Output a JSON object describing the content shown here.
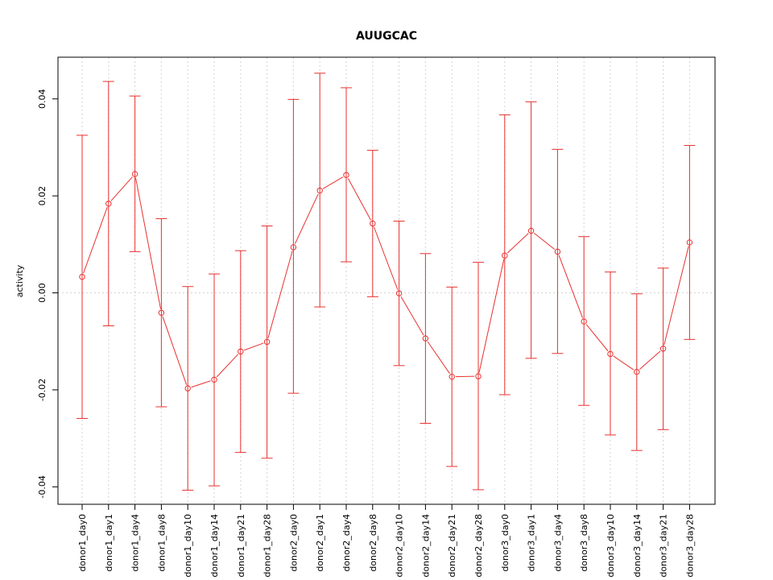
{
  "chart_data": {
    "type": "line",
    "title": "AUUGCAC",
    "xlabel": "",
    "ylabel": "activity",
    "ylim": [
      -0.0436,
      0.0486
    ],
    "grid": true,
    "colors": {
      "series": "#e8312f",
      "grid": "#d3d3d3",
      "axis": "#000000"
    },
    "yticks": [
      {
        "value": -0.04,
        "label": "-0.04"
      },
      {
        "value": -0.02,
        "label": "-0.02"
      },
      {
        "value": 0.0,
        "label": "0.00"
      },
      {
        "value": 0.02,
        "label": "0.02"
      },
      {
        "value": 0.04,
        "label": "0.04"
      }
    ],
    "categories": [
      "donor1_day0",
      "donor1_day1",
      "donor1_day4",
      "donor1_day8",
      "donor1_day10",
      "donor1_day14",
      "donor1_day21",
      "donor1_day28",
      "donor2_day0",
      "donor2_day1",
      "donor2_day4",
      "donor2_day8",
      "donor2_day10",
      "donor2_day14",
      "donor2_day21",
      "donor2_day28",
      "donor3_day0",
      "donor3_day1",
      "donor3_day4",
      "donor3_day8",
      "donor3_day10",
      "donor3_day14",
      "donor3_day21",
      "donor3_day28"
    ],
    "series": [
      {
        "values": [
          0.0033,
          0.0184,
          0.0245,
          -0.0041,
          -0.0197,
          -0.0179,
          -0.0121,
          -0.0101,
          0.0094,
          0.0211,
          0.0243,
          0.0143,
          -0.0001,
          -0.0094,
          -0.0173,
          -0.0172,
          0.0077,
          0.0128,
          0.0085,
          -0.0059,
          -0.0126,
          -0.0163,
          -0.0115,
          0.0104
        ],
        "upper": [
          0.0325,
          0.0436,
          0.0406,
          0.0153,
          0.0013,
          0.0039,
          0.0087,
          0.0138,
          0.0399,
          0.0453,
          0.0423,
          0.0294,
          0.0148,
          0.0081,
          0.0012,
          0.0063,
          0.0367,
          0.0394,
          0.0296,
          0.0116,
          0.0043,
          -0.0002,
          0.0051,
          0.0304
        ],
        "lower": [
          -0.0259,
          -0.0068,
          0.0085,
          -0.0235,
          -0.0407,
          -0.0398,
          -0.0329,
          -0.0341,
          -0.0207,
          -0.0029,
          0.0064,
          -0.0008,
          -0.015,
          -0.0269,
          -0.0358,
          -0.0406,
          -0.021,
          -0.0135,
          -0.0125,
          -0.0232,
          -0.0293,
          -0.0325,
          -0.0282,
          -0.0096
        ]
      }
    ]
  }
}
